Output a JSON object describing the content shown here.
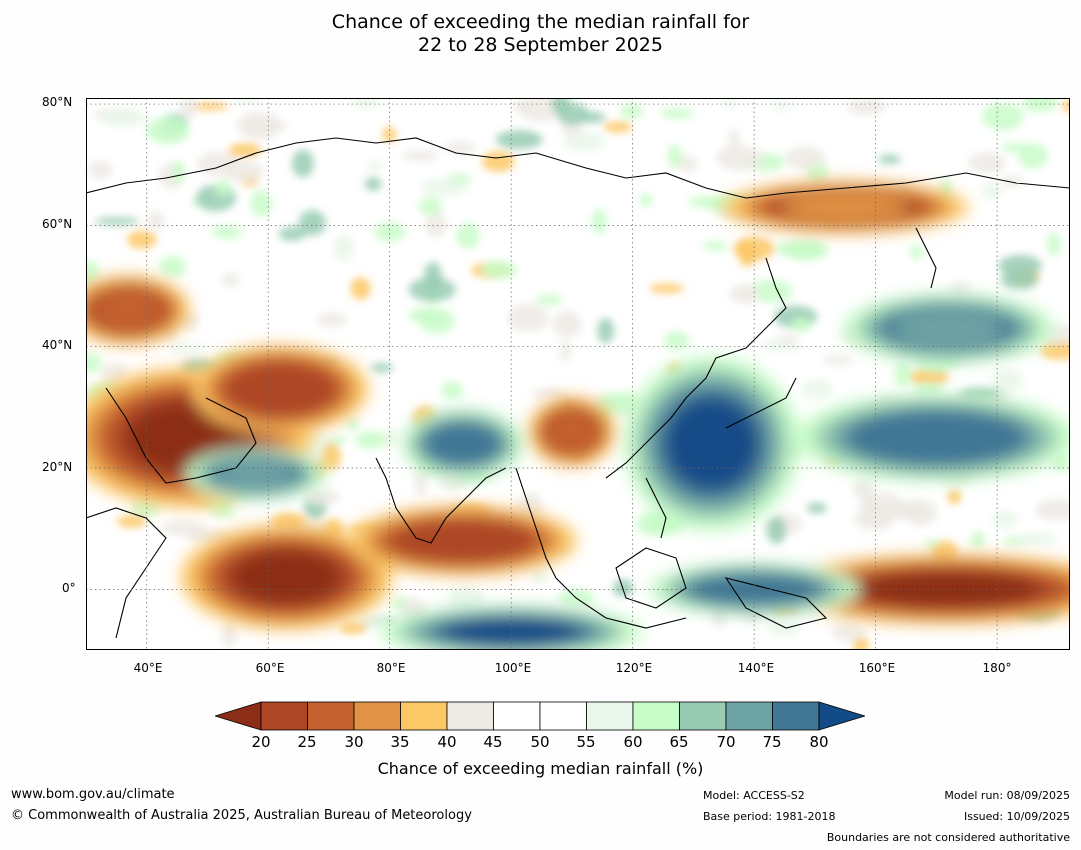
{
  "title": {
    "line1": "Chance of exceeding the median rainfall for",
    "line2": "22 to 28 September 2025"
  },
  "axes": {
    "lat_ticks": [
      "80°N",
      "60°N",
      "40°N",
      "20°N",
      "0°"
    ],
    "lon_ticks": [
      "40°E",
      "60°E",
      "80°E",
      "100°E",
      "120°E",
      "140°E",
      "160°E",
      "180°"
    ]
  },
  "colorbar": {
    "ticks": [
      "20",
      "25",
      "30",
      "35",
      "40",
      "45",
      "50",
      "55",
      "60",
      "65",
      "70",
      "75",
      "80"
    ],
    "label": "Chance of exceeding median rainfall (%)",
    "colors": [
      "#8c2d18",
      "#ad4725",
      "#c4612f",
      "#e09345",
      "#fcc866",
      "#edeae4",
      "#ffffff",
      "#ffffff",
      "#eaf7ea",
      "#c8fcc8",
      "#98cbb3",
      "#6da3a5",
      "#417795",
      "#134b87"
    ],
    "under_color": "#8c2d18",
    "over_color": "#134b87"
  },
  "footer": {
    "website": "www.bom.gov.au/climate",
    "copyright": "© Commonwealth of Australia 2025, Australian Bureau of Meteorology",
    "model": "Model: ACCESS-S2",
    "base_period": "Base period: 1981-2018",
    "model_run": "Model run: 08/09/2025",
    "issued": "Issued: 10/09/2025",
    "disclaimer": "Boundaries are not considered authoritative"
  },
  "map_data": {
    "lon_range": [
      30,
      192
    ],
    "lat_range": [
      -10,
      81
    ],
    "dry_regions": [
      {
        "name": "arabia",
        "lon": 47,
        "lat": 25,
        "rx": 14,
        "ry": 8,
        "level": 20
      },
      {
        "name": "iran",
        "lon": 62,
        "lat": 33,
        "rx": 10,
        "ry": 5,
        "level": 25
      },
      {
        "name": "arabian-sea",
        "lon": 63,
        "lat": 2,
        "rx": 12,
        "ry": 6,
        "level": 20
      },
      {
        "name": "bay-of-bengal-south",
        "lon": 92,
        "lat": 8,
        "rx": 13,
        "ry": 4,
        "level": 25
      },
      {
        "name": "china-south",
        "lon": 110,
        "lat": 26,
        "rx": 5,
        "ry": 4,
        "level": 30
      },
      {
        "name": "central-pacific",
        "lon": 172,
        "lat": 0,
        "rx": 20,
        "ry": 4,
        "level": 20
      },
      {
        "name": "caspian-region",
        "lon": 37,
        "lat": 46,
        "rx": 7,
        "ry": 4,
        "level": 30
      },
      {
        "name": "siberia-east",
        "lon": 155,
        "lat": 63,
        "rx": 14,
        "ry": 3,
        "level": 35
      }
    ],
    "wet_regions": [
      {
        "name": "philippine-sea",
        "lon": 133,
        "lat": 24,
        "rx": 10,
        "ry": 10,
        "level": 80
      },
      {
        "name": "indian-ocean-south",
        "lon": 100,
        "lat": -7,
        "rx": 15,
        "ry": 3,
        "level": 80
      },
      {
        "name": "north-pacific",
        "lon": 170,
        "lat": 25,
        "rx": 16,
        "ry": 5,
        "level": 75
      },
      {
        "name": "north-pacific-high",
        "lon": 172,
        "lat": 43,
        "rx": 12,
        "ry": 4,
        "level": 70
      },
      {
        "name": "bay-of-bengal-north",
        "lon": 92,
        "lat": 24,
        "rx": 7,
        "ry": 4,
        "level": 75
      },
      {
        "name": "arabian-sea-north",
        "lon": 58,
        "lat": 19,
        "rx": 8,
        "ry": 3,
        "level": 70
      },
      {
        "name": "new-guinea-north",
        "lon": 140,
        "lat": 0,
        "rx": 12,
        "ry": 3,
        "level": 75
      }
    ]
  }
}
